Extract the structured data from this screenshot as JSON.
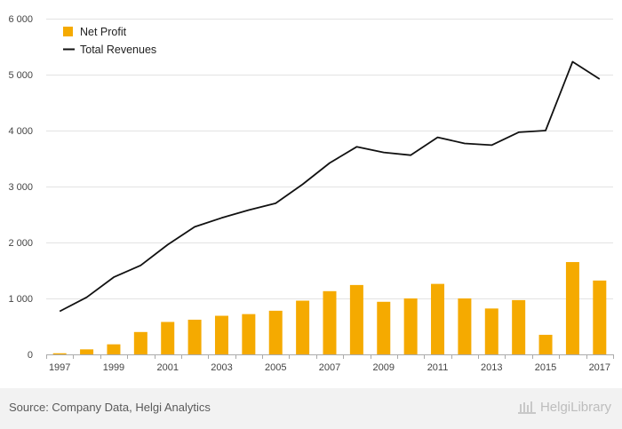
{
  "chart_data": {
    "type": "bar+line",
    "title": "",
    "xlabel": "",
    "ylabel": "",
    "ylim": [
      0,
      6000
    ],
    "yticks": [
      0,
      1000,
      2000,
      3000,
      4000,
      5000,
      6000
    ],
    "ytick_labels": [
      "0",
      "1 000",
      "2 000",
      "3 000",
      "4 000",
      "5 000",
      "6 000"
    ],
    "categories": [
      "1997",
      "1998",
      "1999",
      "2000",
      "2001",
      "2002",
      "2003",
      "2004",
      "2005",
      "2006",
      "2007",
      "2008",
      "2009",
      "2010",
      "2011",
      "2012",
      "2013",
      "2014",
      "2015",
      "2016",
      "2017"
    ],
    "xtick_labels": [
      "1997",
      "1999",
      "2001",
      "2003",
      "2005",
      "2007",
      "2009",
      "2011",
      "2013",
      "2015",
      "2017"
    ],
    "grid": "horizontal",
    "legend_position": "top-left",
    "series": [
      {
        "name": "Net Profit",
        "type": "bar",
        "color": "#f5aa00",
        "values": [
          20,
          90,
          180,
          400,
          580,
          620,
          690,
          720,
          780,
          960,
          1130,
          1240,
          940,
          1000,
          1260,
          1000,
          820,
          970,
          350,
          1650,
          1320
        ]
      },
      {
        "name": "Total Revenues",
        "type": "line",
        "color": "#111111",
        "values": [
          770,
          1020,
          1380,
          1590,
          1960,
          2280,
          2440,
          2580,
          2700,
          3040,
          3420,
          3710,
          3610,
          3560,
          3880,
          3770,
          3740,
          3970,
          4000,
          5230,
          4920
        ]
      }
    ]
  },
  "footer": {
    "source": "Source: Company Data, Helgi Analytics",
    "brand": "HelgiLibrary"
  }
}
